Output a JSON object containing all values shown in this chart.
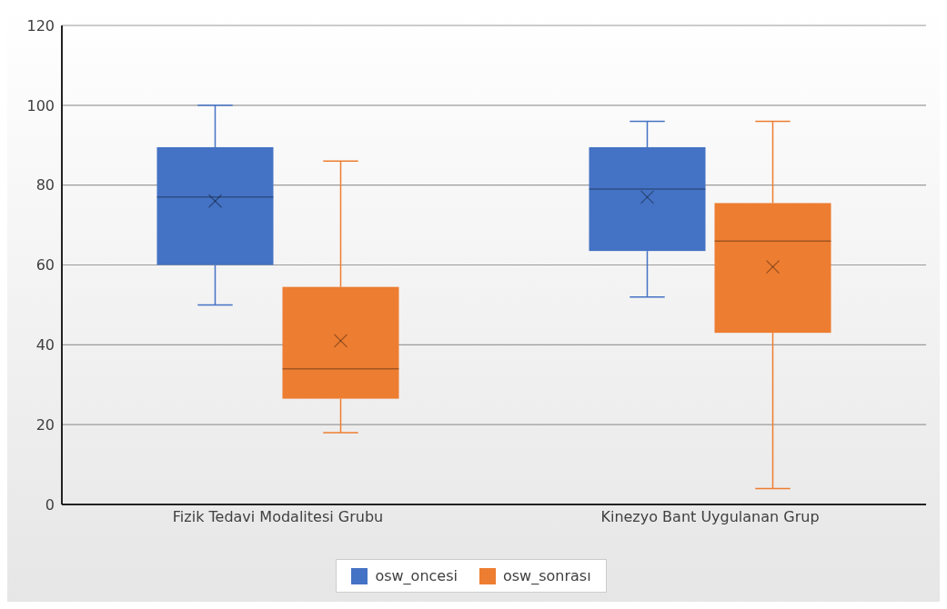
{
  "chart_data": {
    "type": "box",
    "categories": [
      "Fizik Tedavi  Modalitesi  Grubu",
      "Kinezyo Bant Uygulanan  Grup"
    ],
    "series": [
      {
        "name": "osw_oncesi",
        "color": "#4472c4",
        "boxes": [
          {
            "low": 50,
            "q1": 60,
            "median": 77,
            "q3": 89.5,
            "high": 100,
            "mean": 76
          },
          {
            "low": 52,
            "q1": 63.5,
            "median": 79,
            "q3": 89.5,
            "high": 96,
            "mean": 77
          }
        ]
      },
      {
        "name": "osw_sonrası",
        "color": "#ed7d31",
        "boxes": [
          {
            "low": 18,
            "q1": 26.5,
            "median": 34,
            "q3": 54.5,
            "high": 86,
            "mean": 41
          },
          {
            "low": 4,
            "q1": 43,
            "median": 66,
            "q3": 75.5,
            "high": 96,
            "mean": 59.5
          }
        ]
      }
    ],
    "ylim": [
      0,
      120
    ],
    "yticks": [
      0,
      20,
      40,
      60,
      80,
      100,
      120
    ],
    "grid": "y",
    "legend": "bottom"
  }
}
